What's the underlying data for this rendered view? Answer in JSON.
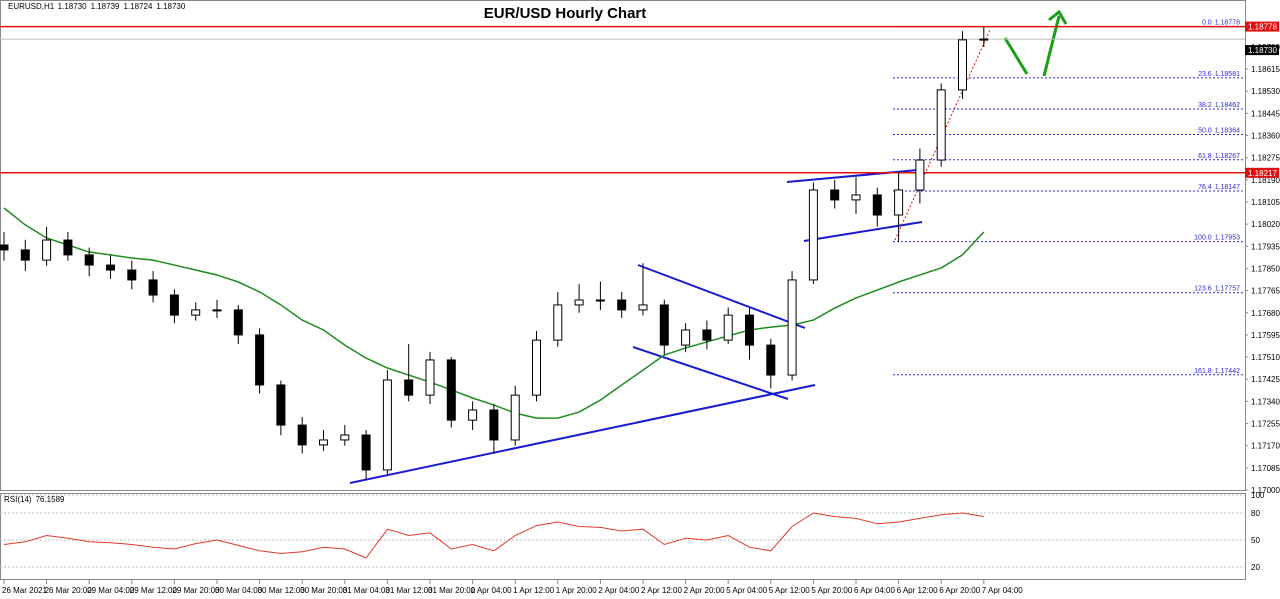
{
  "chart_data": [
    {
      "type": "candlestick",
      "title": "EUR/USD Hourly Chart",
      "symbol": "EURUSD,H1",
      "last_bar": [
        {
          "value": 1.1873,
          "label": "1.18730"
        },
        1.18739,
        1.18724,
        {
          "value": 1.1873,
          "label": "1.18730"
        }
      ],
      "open": [
        1.1794,
        1.17921,
        1.17882,
        1.17959,
        1.17902,
        1.17863,
        1.17844,
        1.17806,
        1.17748,
        1.17671,
        1.17691,
        1.17691,
        1.17595,
        1.17403,
        1.17249,
        1.17173,
        1.17192,
        1.17211,
        1.17077,
        1.17422,
        1.17364,
        1.17499,
        1.17268,
        1.17307,
        1.17192,
        1.17364,
        1.17575,
        1.1771,
        1.17729,
        1.17729,
        1.17691,
        1.1771,
        1.17556,
        1.17614,
        1.17575,
        1.17671,
        1.17556,
        1.17441,
        1.17806,
        1.18151,
        1.18113,
        1.18132,
        1.18055,
        1.18151,
        1.18266,
        1.18535,
        1.18727
      ],
      "high": [
        1.1799,
        1.1796,
        1.1801,
        1.1799,
        1.1793,
        1.179,
        1.1788,
        1.1784,
        1.1777,
        1.1772,
        1.1773,
        1.1771,
        1.1762,
        1.1742,
        1.1728,
        1.1723,
        1.1725,
        1.1723,
        1.1746,
        1.1756,
        1.1753,
        1.1751,
        1.1734,
        1.1733,
        1.174,
        1.1761,
        1.1776,
        1.1779,
        1.178,
        1.1776,
        1.1787,
        1.1773,
        1.1764,
        1.1765,
        1.177,
        1.177,
        1.1758,
        1.1784,
        1.1818,
        1.1819,
        1.182,
        1.1816,
        1.1822,
        1.1831,
        1.1856,
        1.1876,
        1.18778
      ],
      "low": [
        1.1788,
        1.1784,
        1.1786,
        1.1788,
        1.1782,
        1.1781,
        1.1777,
        1.1772,
        1.1764,
        1.1765,
        1.1766,
        1.1756,
        1.1737,
        1.1721,
        1.1714,
        1.1715,
        1.1717,
        1.1704,
        1.1706,
        1.1734,
        1.1733,
        1.1724,
        1.1723,
        1.1714,
        1.1717,
        1.1734,
        1.1755,
        1.1768,
        1.1769,
        1.1766,
        1.1767,
        1.1752,
        1.1753,
        1.1754,
        1.1756,
        1.175,
        1.1739,
        1.1742,
        1.1779,
        1.1808,
        1.1806,
        1.1801,
        1.1795,
        1.181,
        1.1824,
        1.185,
        1.187
      ],
      "close": [
        1.17921,
        1.17882,
        1.17959,
        1.17902,
        1.17863,
        1.17844,
        1.17806,
        1.17748,
        1.17671,
        1.17691,
        1.17691,
        1.17595,
        1.17403,
        1.17249,
        1.17173,
        1.17192,
        1.17211,
        1.17077,
        1.17422,
        1.17364,
        1.17499,
        1.17268,
        1.17307,
        1.17192,
        1.17364,
        1.17575,
        1.1771,
        1.17729,
        1.17729,
        1.17691,
        1.1771,
        1.17556,
        1.17614,
        1.17575,
        1.17671,
        1.17556,
        1.17441,
        1.17806,
        1.18151,
        1.18113,
        1.18132,
        1.18055,
        1.18151,
        1.18266,
        1.18535,
        1.18727,
        1.1873
      ],
      "ma": {
        "color": "#1e8c1e",
        "values": [
          1.18082,
          1.18017,
          1.17967,
          1.1794,
          1.17913,
          1.17902,
          1.1789,
          1.17882,
          1.17863,
          1.17844,
          1.17825,
          1.17798,
          1.1776,
          1.1771,
          1.17652,
          1.17614,
          1.17556,
          1.17506,
          1.17468,
          1.17441,
          1.17414,
          1.17384,
          1.17353,
          1.17326,
          1.17295,
          1.17276,
          1.17276,
          1.17299,
          1.17345,
          1.17403,
          1.1746,
          1.17518,
          1.17545,
          1.17568,
          1.17591,
          1.17614,
          1.17625,
          1.17633,
          1.17652,
          1.17698,
          1.17737,
          1.17767,
          1.17798,
          1.17825,
          1.17852,
          1.17902,
          1.1799
        ]
      },
      "ylim": [
        1.17,
        1.1888
      ],
      "yticks": [
        {
          "value": 1.187,
          "label": "1.18700"
        },
        1.18615,
        {
          "value": 1.1853,
          "label": "1.18530"
        },
        1.18445,
        {
          "value": 1.1836,
          "label": "1.18360"
        },
        1.18275,
        {
          "value": 1.1819,
          "label": "1.18190"
        },
        1.18105,
        {
          "value": 1.1802,
          "label": "1.18020"
        },
        1.17935,
        {
          "value": 1.1785,
          "label": "1.17850"
        },
        1.17765,
        {
          "value": 1.1768,
          "label": "1.17680"
        },
        1.17595,
        {
          "value": 1.1751,
          "label": "1.17510"
        },
        1.17425,
        {
          "value": 1.1734,
          "label": "1.17340"
        },
        1.17255,
        {
          "value": 1.1717,
          "label": "1.17170"
        },
        1.17085,
        {
          "value": 1.17,
          "label": "1.17000"
        }
      ],
      "xticks": [
        {
          "value": 0,
          "label": "26 Mar 2021"
        },
        {
          "value": 2,
          "label": "26 Mar 20:00"
        },
        {
          "value": 4,
          "label": "29 Mar 04:00"
        },
        {
          "value": 6,
          "label": "29 Mar 12:00"
        },
        {
          "value": 8,
          "label": "29 Mar 20:00"
        },
        {
          "value": 10,
          "label": "30 Mar 04:00"
        },
        {
          "value": 12,
          "label": "30 Mar 12:00"
        },
        {
          "value": 14,
          "label": "30 Mar 20:00"
        },
        {
          "value": 16,
          "label": "31 Mar 04:00"
        },
        {
          "value": 18,
          "label": "31 Mar 12:00"
        },
        {
          "value": 20,
          "label": "31 Mar 20:00"
        },
        {
          "value": 22,
          "label": "1 Apr 04:00"
        },
        {
          "value": 24,
          "label": "1 Apr 12:00"
        },
        {
          "value": 26,
          "label": "1 Apr 20:00"
        },
        {
          "value": 28,
          "label": "2 Apr 04:00"
        },
        {
          "value": 30,
          "label": "2 Apr 12:00"
        },
        {
          "value": 32,
          "label": "2 Apr 20:00"
        },
        {
          "value": 34,
          "label": "5 Apr 04:00"
        },
        {
          "value": 36,
          "label": "5 Apr 12:00"
        },
        {
          "value": 38,
          "label": "5 Apr 20:00"
        },
        {
          "value": 40,
          "label": "6 Apr 04:00"
        },
        {
          "value": 42,
          "label": "6 Apr 12:00"
        },
        {
          "value": 44,
          "label": "6 Apr 20:00"
        },
        {
          "value": 46,
          "label": "7 Apr 04:00"
        }
      ],
      "levels": [
        1.18778,
        1.18217
      ],
      "level_color": "#e01010",
      "current": {
        "value": 1.1873,
        "label": "1.18730"
      },
      "fib": [
        {
          "ratio": "0.0",
          "price": 1.18778
        },
        {
          "ratio": "23.6",
          "price": 1.18581
        },
        {
          "ratio": "38.2",
          "price": 1.18462
        },
        {
          "ratio": "50.0",
          "price": 1.18364
        },
        {
          "ratio": "61.8",
          "price": 1.18267
        },
        {
          "ratio": "76.4",
          "price": 1.18147
        },
        {
          "ratio": "100.0",
          "price": 1.17953
        },
        {
          "ratio": "123.6",
          "price": 1.17757
        },
        {
          "ratio": "161.8",
          "price": 1.17442
        }
      ],
      "fib_color": "#2a2ad8"
    },
    {
      "type": "line",
      "label": "RSI(14)",
      "color": "#e03a2a",
      "values": [
        45,
        48,
        55,
        52,
        48,
        47,
        45,
        42,
        40,
        46,
        50,
        44,
        38,
        35,
        37,
        42,
        40,
        30,
        62,
        55,
        58,
        40,
        45,
        38,
        55,
        66,
        70,
        65,
        64,
        60,
        62,
        45,
        52,
        50,
        55,
        42,
        38,
        65,
        80,
        76,
        74,
        68,
        70,
        74,
        78,
        80,
        76.1589
      ],
      "ylim": [
        0,
        100
      ],
      "yticks": [
        100,
        80,
        50,
        20
      ]
    }
  ]
}
